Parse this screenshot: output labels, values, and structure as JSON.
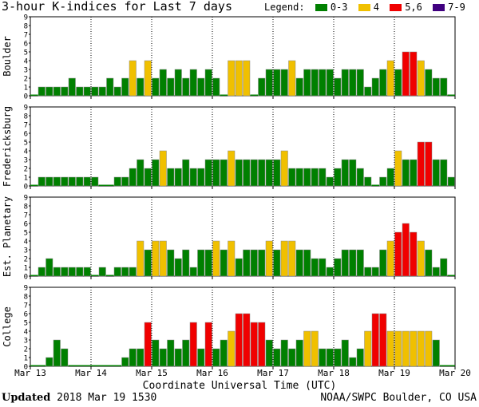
{
  "title": "3-hour K-indices for Last 7 days",
  "legend": {
    "label": "Legend:",
    "items": [
      {
        "label": "0-3",
        "color": "#008000"
      },
      {
        "label": "4",
        "color": "#F0C000"
      },
      {
        "label": "5,6",
        "color": "#F00000"
      },
      {
        "label": "7-9",
        "color": "#400080"
      }
    ]
  },
  "footer": {
    "updated_label": "Updated",
    "updated_value": "2018 Mar 19 1530",
    "source": "NOAA/SWPC Boulder, CO USA"
  },
  "chart_data": {
    "type": "bar",
    "title": "3-hour K-indices for Last 7 days",
    "xlabel": "Coordinate Universal Time (UTC)",
    "xticks": [
      "Mar 13",
      "Mar 14",
      "Mar 15",
      "Mar 16",
      "Mar 17",
      "Mar 18",
      "Mar 19",
      "Mar 20"
    ],
    "yticks": [
      "0",
      "1",
      "2",
      "3",
      "4",
      "5",
      "6",
      "7",
      "8",
      "9"
    ],
    "ylim": [
      0,
      9
    ],
    "colors": {
      "quiet": "#008000",
      "active": "#F0C000",
      "storm": "#F00000",
      "severe": "#400080"
    },
    "panels": [
      {
        "name": "Boulder",
        "values": [
          0,
          1,
          1,
          1,
          1,
          2,
          1,
          1,
          1,
          1,
          2,
          1,
          2,
          4,
          2,
          4,
          2,
          3,
          2,
          3,
          2,
          3,
          2,
          3,
          2,
          0,
          4,
          4,
          4,
          0,
          2,
          3,
          3,
          3,
          4,
          2,
          3,
          3,
          3,
          3,
          2,
          3,
          3,
          3,
          1,
          2,
          3,
          4,
          3,
          5,
          5,
          4,
          3,
          2,
          2,
          0,
          0,
          0
        ]
      },
      {
        "name": "Fredericksburg",
        "values": [
          0,
          1,
          1,
          1,
          1,
          1,
          1,
          1,
          1,
          0,
          0,
          1,
          1,
          2,
          3,
          2,
          3,
          4,
          2,
          2,
          3,
          2,
          2,
          3,
          3,
          3,
          4,
          3,
          3,
          3,
          3,
          3,
          3,
          4,
          2,
          2,
          2,
          2,
          2,
          1,
          2,
          3,
          3,
          2,
          1,
          0,
          1,
          2,
          4,
          3,
          3,
          5,
          5,
          3,
          3,
          1,
          2,
          0,
          0
        ]
      },
      {
        "name": "Est. Planetary",
        "values": [
          0,
          1,
          2,
          1,
          1,
          1,
          1,
          1,
          0,
          1,
          0,
          1,
          1,
          1,
          4,
          3,
          4,
          4,
          3,
          2,
          3,
          1,
          3,
          3,
          4,
          3,
          4,
          2,
          3,
          3,
          3,
          4,
          3,
          4,
          4,
          3,
          3,
          2,
          2,
          1,
          2,
          3,
          3,
          3,
          1,
          1,
          3,
          4,
          5,
          6,
          5,
          4,
          3,
          1,
          2,
          0,
          0,
          0
        ]
      },
      {
        "name": "College",
        "values": [
          0,
          0,
          1,
          3,
          2,
          0,
          0,
          0,
          0,
          0,
          0,
          0,
          1,
          2,
          2,
          5,
          3,
          2,
          3,
          2,
          3,
          5,
          2,
          5,
          2,
          3,
          4,
          6,
          6,
          5,
          5,
          3,
          2,
          3,
          2,
          3,
          4,
          4,
          2,
          2,
          2,
          3,
          1,
          2,
          4,
          6,
          6,
          4,
          4,
          4,
          4,
          4,
          4,
          3,
          0,
          0,
          0,
          0
        ]
      }
    ]
  }
}
